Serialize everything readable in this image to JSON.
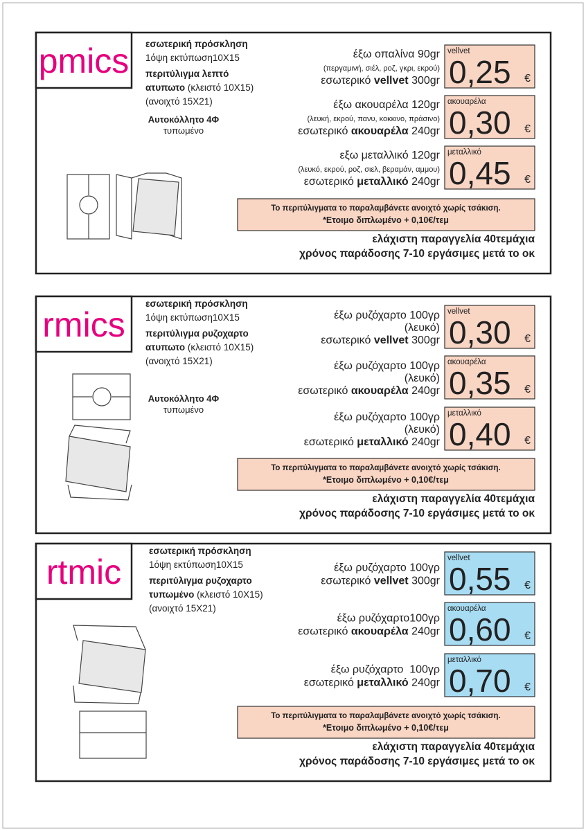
{
  "sections": [
    {
      "code": "pmics",
      "price_color": "#f9d5c4",
      "info": [
        [
          {
            "t": "εσωτερική πρόσκληση",
            "b": true
          }
        ],
        [
          {
            "t": "1όψη εκτύπωση10Χ15"
          }
        ],
        [
          {
            "t": "περιτύλιγμα λεπτό",
            "b": true
          }
        ],
        [
          {
            "t": "ατυπωτο",
            "b": true
          },
          {
            "t": " (κλειστό 10Χ15)"
          }
        ],
        [
          {
            "t": "(ανοιχτό 15Χ21)"
          }
        ]
      ],
      "sticker": [
        "Αυτοκόλλητο 4Φ",
        "τυπωμένο"
      ],
      "options": [
        {
          "lines": [
            [
              {
                "t": "έξω οπαλίνα 90gr"
              }
            ],
            [
              {
                "t": "(περγαμινή, σιέλ, ροζ, γκρι, εκρού)",
                "small": true
              }
            ],
            [
              {
                "t": "εσωτερικό "
              },
              {
                "t": "vellvet",
                "b": true
              },
              {
                "t": " 300gr"
              }
            ]
          ],
          "label": "vellvet",
          "price": "0,25",
          "currency": "€"
        },
        {
          "lines": [
            [
              {
                "t": "έξω ακουαρέλα 120gr"
              }
            ],
            [
              {
                "t": "(λευκή, εκρού, πανυ, κοκκινο, πράσινο)",
                "small": true
              }
            ],
            [
              {
                "t": "εσωτερικό "
              },
              {
                "t": "ακουαρέλα",
                "b": true
              },
              {
                "t": " 240gr"
              }
            ]
          ],
          "label": "ακουαρέλα",
          "price": "0,30",
          "currency": "€"
        },
        {
          "lines": [
            [
              {
                "t": "εξω μεταλλικό 120gr"
              }
            ],
            [
              {
                "t": "(λευκό, εκρού, ροζ, σιελ, βεραμάν, αμμου)",
                "small": true
              }
            ],
            [
              {
                "t": "εσωτερικό "
              },
              {
                "t": "μεταλλικό",
                "b": true
              },
              {
                "t": " 240gr"
              }
            ]
          ],
          "label": "μεταλλικό",
          "price": "0,45",
          "currency": "€"
        }
      ],
      "note": [
        "Το περιτύλιγματα το παραλαμβάνετε ανοιχτό χωρίς τσάκιση.",
        "*Ετοιμο διπλωμένο + 0,10€/τεμ"
      ],
      "minimum": [
        "ελάχιστη παραγγελία 40τεμάχια",
        "χρόνος παράδοσης 7-10 εργάσιμες μετά το οκ"
      ]
    },
    {
      "code": "rmics",
      "price_color": "#f9d5c4",
      "info": [
        [
          {
            "t": "εσωτερική πρόσκληση",
            "b": true
          }
        ],
        [
          {
            "t": "1όψη εκτύπωση10Χ15"
          }
        ],
        [
          {
            "t": "περιτύλιγμα ρυζοχαρτο",
            "b": true
          }
        ],
        [
          {
            "t": "ατυπωτο",
            "b": true
          },
          {
            "t": " (κλειστό 10Χ15)"
          }
        ],
        [
          {
            "t": "(ανοιχτό 15Χ21)"
          }
        ]
      ],
      "sticker": [
        "Αυτοκόλλητο 4Φ",
        "τυπωμένο"
      ],
      "options": [
        {
          "lines": [
            [
              {
                "t": "έξω ρυζόχαρτο 100γρ"
              }
            ],
            [
              {
                "t": "(λευκό)"
              }
            ],
            [
              {
                "t": "εσωτερικό "
              },
              {
                "t": "vellvet",
                "b": true
              },
              {
                "t": " 300gr"
              }
            ]
          ],
          "label": "vellvet",
          "price": "0,30",
          "currency": "€"
        },
        {
          "lines": [
            [
              {
                "t": "έξω ρυζόχαρτο 100γρ"
              }
            ],
            [
              {
                "t": "(λευκό)"
              }
            ],
            [
              {
                "t": "εσωτερικό "
              },
              {
                "t": "ακουαρέλα",
                "b": true
              },
              {
                "t": " 240gr"
              }
            ]
          ],
          "label": "ακουαρέλα",
          "price": "0,35",
          "currency": "€"
        },
        {
          "lines": [
            [
              {
                "t": "έξω ρυζόχαρτο 100γρ"
              }
            ],
            [
              {
                "t": "(λευκό)"
              }
            ],
            [
              {
                "t": "εσωτερικό "
              },
              {
                "t": "μεταλλικό",
                "b": true
              },
              {
                "t": " 240gr"
              }
            ]
          ],
          "label": "μεταλλικό",
          "price": "0,40",
          "currency": "€"
        }
      ],
      "note": [
        "Το περιτύλιγματα το παραλαμβάνετε ανοιχτό χωρίς τσάκιση.",
        "*Ετοιμο διπλωμένο + 0,10€/τεμ"
      ],
      "minimum": [
        "ελάχιστη παραγγελία 40τεμάχια",
        "χρόνος παράδοσης 7-10 εργάσιμες μετά το οκ"
      ]
    },
    {
      "code": "rtmic",
      "price_color": "#a8dcf3",
      "info": [
        [
          {
            "t": "εσωτερική πρόσκληση",
            "b": true
          }
        ],
        [
          {
            "t": "1όψη εκτύπωση10Χ15"
          }
        ],
        [
          {
            "t": "περιτύλιγμα ρυζοχαρτο",
            "b": true
          }
        ],
        [
          {
            "t": "τυπωμένο",
            "b": true
          },
          {
            "t": " (κλειστό 10Χ15)"
          }
        ],
        [
          {
            "t": "(ανοιχτό 15Χ21)"
          }
        ]
      ],
      "options": [
        {
          "lines": [
            [
              {
                "t": "έξω ρυζόχαρτο 100γρ"
              }
            ],
            [
              {
                "t": "εσωτερικό "
              },
              {
                "t": "vellvet",
                "b": true
              },
              {
                "t": " 300gr"
              }
            ]
          ],
          "label": "vellvet",
          "price": "0,55",
          "currency": "€"
        },
        {
          "lines": [
            [
              {
                "t": "έξω ρυζόχαρτο100γρ"
              }
            ],
            [
              {
                "t": "εσωτερικό "
              },
              {
                "t": "ακουαρέλα",
                "b": true
              },
              {
                "t": " 240gr"
              }
            ]
          ],
          "label": "ακουαρέλα",
          "price": "0,60",
          "currency": "€"
        },
        {
          "lines": [
            [
              {
                "t": "έξω ρυζόχαρτο  100γρ"
              }
            ],
            [
              {
                "t": "εσωτερικό "
              },
              {
                "t": "μεταλλικό",
                "b": true
              },
              {
                "t": " 240gr"
              }
            ]
          ],
          "label": "μεταλλικό",
          "price": "0,70",
          "currency": "€"
        }
      ],
      "note": [
        "Το περιτύλιγματα το παραλαμβάνετε ανοιχτό χωρίς τσάκιση.",
        "*Ετοιμο διπλωμένο + 0,10€/τεμ"
      ],
      "minimum": [
        "ελάχιστη παραγγελία 40τεμάχια",
        "χρόνος παράδοσης 7-10 εργάσιμες μετά το οκ"
      ]
    }
  ]
}
